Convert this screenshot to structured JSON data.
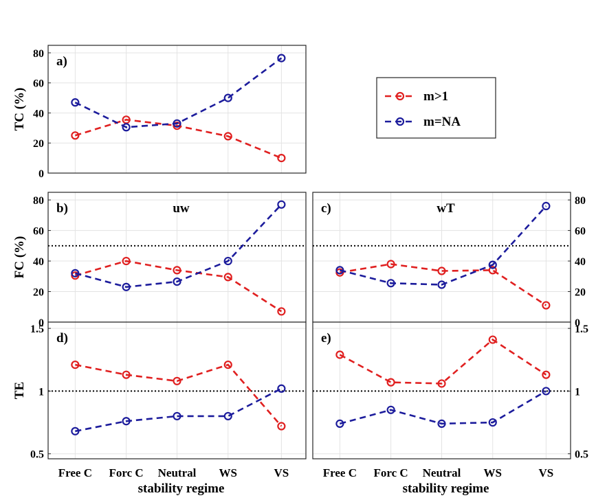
{
  "legend": {
    "entries": [
      {
        "label": "m>1",
        "color": "#e02020"
      },
      {
        "label": "m=NA",
        "color": "#1c1c9c"
      }
    ]
  },
  "colors": {
    "series1": "#e02020",
    "series2": "#1c1c9c",
    "grid": "#e3e3e3",
    "axis": "#262626"
  },
  "shared_xlabel": "stability regime",
  "chart_data": [
    {
      "panel": "a)",
      "type": "line",
      "ylabel": "TC (%)",
      "subtitle": "",
      "categories": [
        "Free C",
        "Forc C",
        "Neutral",
        "WS",
        "VS"
      ],
      "ylim": [
        0,
        85
      ],
      "yticks": [
        0,
        20,
        40,
        60,
        80
      ],
      "yticks_side": "left",
      "reference_line": null,
      "series": [
        {
          "name": "m>1",
          "values": [
            25,
            35.5,
            31.5,
            24.5,
            10
          ]
        },
        {
          "name": "m=NA",
          "values": [
            47,
            30.5,
            33,
            50,
            76.5
          ]
        }
      ]
    },
    {
      "panel": "b)",
      "type": "line",
      "ylabel": "FC (%)",
      "subtitle": "uw",
      "categories": [
        "Free C",
        "Forc C",
        "Neutral",
        "WS",
        "VS"
      ],
      "ylim": [
        0,
        85
      ],
      "yticks": [
        0,
        20,
        40,
        60,
        80
      ],
      "yticks_side": "left",
      "reference_line": 50,
      "series": [
        {
          "name": "m>1",
          "values": [
            30.5,
            40,
            34,
            29.5,
            7
          ]
        },
        {
          "name": "m=NA",
          "values": [
            32,
            23,
            26.5,
            40,
            77
          ]
        }
      ]
    },
    {
      "panel": "c)",
      "type": "line",
      "ylabel": "",
      "subtitle": "wT",
      "categories": [
        "Free C",
        "Forc C",
        "Neutral",
        "WS",
        "VS"
      ],
      "ylim": [
        0,
        85
      ],
      "yticks": [
        0,
        20,
        40,
        60,
        80
      ],
      "yticks_side": "right",
      "reference_line": 50,
      "series": [
        {
          "name": "m>1",
          "values": [
            32.5,
            38,
            33.5,
            34,
            11
          ]
        },
        {
          "name": "m=NA",
          "values": [
            34,
            25.5,
            24.5,
            37.5,
            76
          ]
        }
      ]
    },
    {
      "panel": "d)",
      "type": "line",
      "ylabel": "TE",
      "subtitle": "",
      "categories": [
        "Free C",
        "Forc C",
        "Neutral",
        "WS",
        "VS"
      ],
      "ylim": [
        0.46,
        1.55
      ],
      "yticks": [
        0.5,
        1,
        1.5
      ],
      "yticks_side": "left",
      "reference_line": 1,
      "series": [
        {
          "name": "m>1",
          "values": [
            1.21,
            1.13,
            1.08,
            1.21,
            0.72
          ]
        },
        {
          "name": "m=NA",
          "values": [
            0.68,
            0.76,
            0.8,
            0.8,
            1.02
          ]
        }
      ]
    },
    {
      "panel": "e)",
      "type": "line",
      "ylabel": "",
      "subtitle": "",
      "categories": [
        "Free C",
        "Forc C",
        "Neutral",
        "WS",
        "VS"
      ],
      "ylim": [
        0.46,
        1.55
      ],
      "yticks": [
        0.5,
        1,
        1.5
      ],
      "yticks_side": "right",
      "reference_line": 1,
      "series": [
        {
          "name": "m>1",
          "values": [
            1.29,
            1.07,
            1.06,
            1.41,
            1.13
          ]
        },
        {
          "name": "m=NA",
          "values": [
            0.74,
            0.85,
            0.74,
            0.75,
            1.0
          ]
        }
      ]
    }
  ]
}
